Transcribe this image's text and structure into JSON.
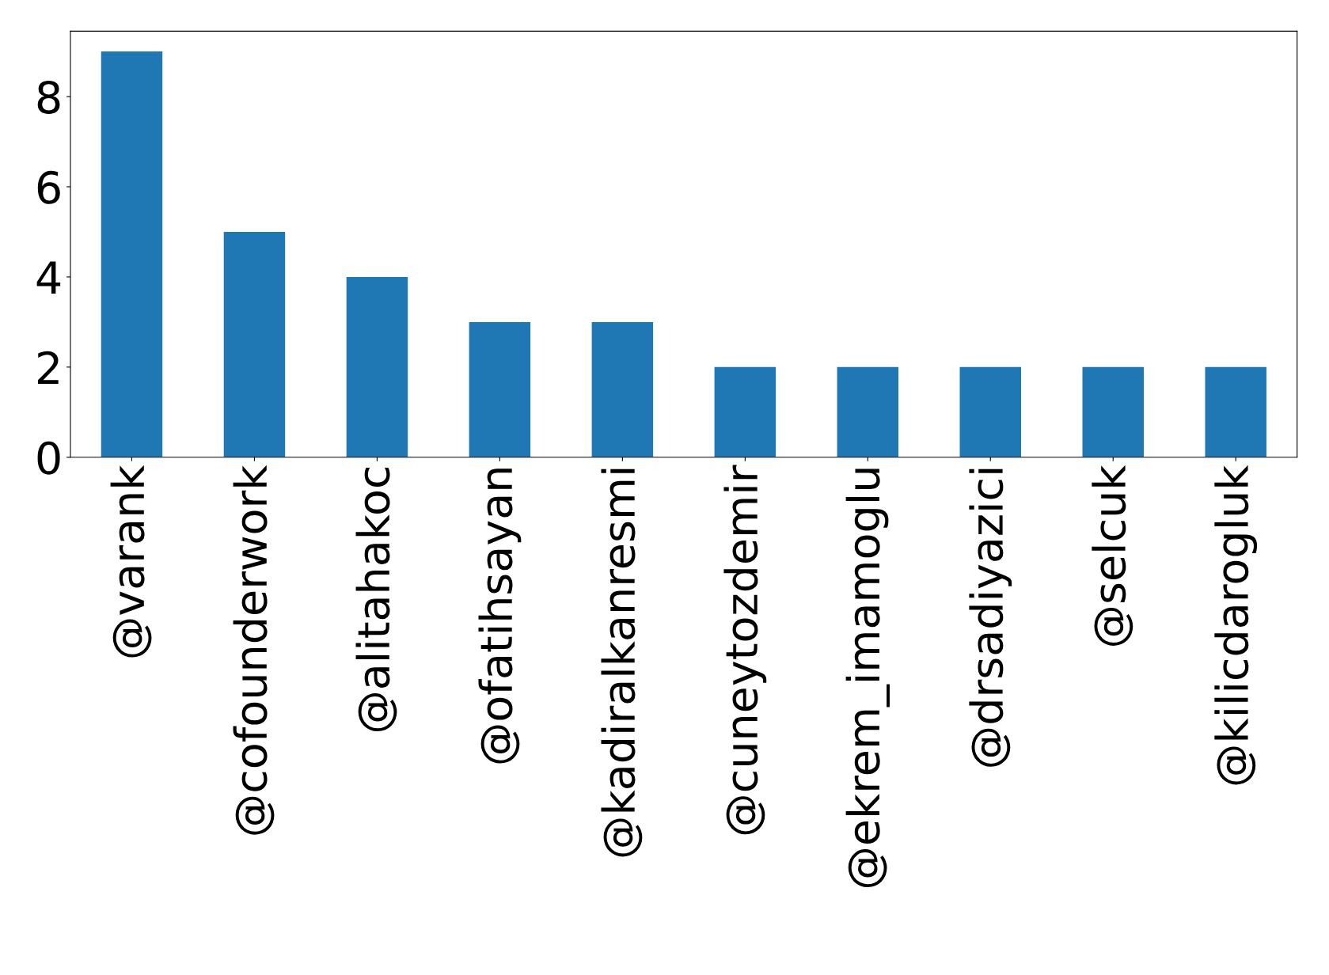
{
  "chart_data": {
    "type": "bar",
    "categories": [
      "@varank",
      "@cofounderwork",
      "@alitahakoc",
      "@ofatihsayan",
      "@kadiralkanresmi",
      "@cuneytozdemir",
      "@ekrem_imamoglu",
      "@drsadiyazici",
      "@selcuk",
      "@kilicdarogluk"
    ],
    "values": [
      9,
      5,
      4,
      3,
      3,
      2,
      2,
      2,
      2,
      2
    ],
    "color": "#1f77b4",
    "ylim": [
      0,
      9.45
    ],
    "yticks": [
      0,
      2,
      4,
      6,
      8
    ],
    "grid": false,
    "legend": false
  }
}
